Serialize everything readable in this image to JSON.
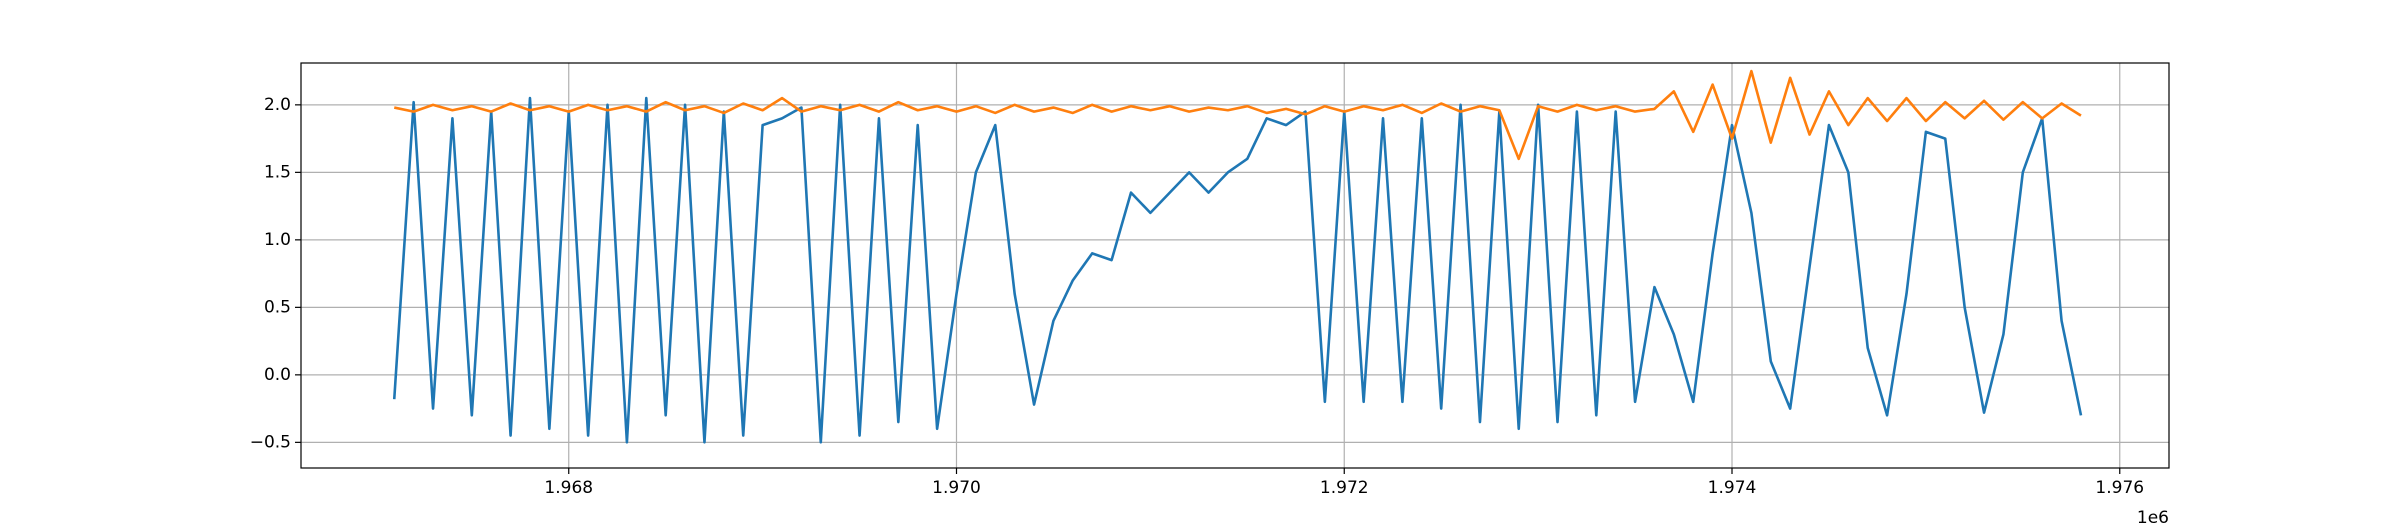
{
  "chart_data": {
    "type": "line",
    "x_offset_label": "1e6",
    "x": [
      1967100,
      1967200,
      1967300,
      1967400,
      1967500,
      1967600,
      1967700,
      1967800,
      1967900,
      1968000,
      1968100,
      1968200,
      1968300,
      1968400,
      1968500,
      1968600,
      1968700,
      1968800,
      1968900,
      1969000,
      1969100,
      1969200,
      1969300,
      1969400,
      1969500,
      1969600,
      1969700,
      1969800,
      1969900,
      1970000,
      1970100,
      1970200,
      1970300,
      1970400,
      1970500,
      1970600,
      1970700,
      1970800,
      1970900,
      1971000,
      1971100,
      1971200,
      1971300,
      1971400,
      1971500,
      1971600,
      1971700,
      1971800,
      1971900,
      1972000,
      1972100,
      1972200,
      1972300,
      1972400,
      1972500,
      1972600,
      1972700,
      1972800,
      1972900,
      1973000,
      1973100,
      1973200,
      1973300,
      1973400,
      1973500,
      1973600,
      1973700,
      1973800,
      1973900,
      1974000,
      1974100,
      1974200,
      1974300,
      1974400,
      1974500,
      1974600,
      1974700,
      1974800,
      1974900,
      1975000,
      1975100,
      1975200,
      1975300,
      1975400,
      1975500,
      1975600,
      1975700,
      1975800
    ],
    "series": [
      {
        "color": "#1f77b4",
        "values": [
          -0.18,
          2.02,
          -0.25,
          1.9,
          -0.3,
          1.95,
          -0.45,
          2.05,
          -0.4,
          1.95,
          -0.45,
          2.0,
          -0.5,
          2.05,
          -0.3,
          2.0,
          -0.5,
          1.95,
          -0.45,
          1.85,
          1.9,
          1.98,
          -0.5,
          2.0,
          -0.45,
          1.9,
          -0.35,
          1.85,
          -0.4,
          0.6,
          1.5,
          1.85,
          0.6,
          -0.22,
          0.4,
          0.7,
          0.9,
          0.85,
          1.35,
          1.2,
          1.35,
          1.5,
          1.35,
          1.5,
          1.6,
          1.9,
          1.85,
          1.95,
          -0.2,
          1.95,
          -0.2,
          1.9,
          -0.2,
          1.9,
          -0.25,
          2.0,
          -0.35,
          1.95,
          -0.4,
          2.0,
          -0.35,
          1.95,
          -0.3,
          1.95,
          -0.2,
          0.65,
          0.3,
          -0.2,
          0.9,
          1.85,
          1.2,
          0.1,
          -0.25,
          0.8,
          1.85,
          1.5,
          0.2,
          -0.3,
          0.6,
          1.8,
          1.75,
          0.5,
          -0.28,
          0.3,
          1.5,
          1.9,
          0.4,
          -0.3
        ]
      },
      {
        "color": "#ff7f0e",
        "values": [
          1.98,
          1.95,
          2.0,
          1.96,
          1.99,
          1.95,
          2.01,
          1.96,
          1.99,
          1.95,
          2.0,
          1.96,
          1.99,
          1.95,
          2.02,
          1.96,
          1.99,
          1.94,
          2.01,
          1.96,
          2.05,
          1.95,
          1.99,
          1.96,
          2.0,
          1.95,
          2.02,
          1.96,
          1.99,
          1.95,
          1.99,
          1.94,
          2.0,
          1.95,
          1.98,
          1.94,
          2.0,
          1.95,
          1.99,
          1.96,
          1.99,
          1.95,
          1.98,
          1.96,
          1.99,
          1.94,
          1.97,
          1.93,
          1.99,
          1.95,
          1.99,
          1.96,
          2.0,
          1.94,
          2.01,
          1.95,
          1.99,
          1.96,
          1.6,
          1.99,
          1.95,
          2.0,
          1.96,
          1.99,
          1.95,
          1.97,
          2.1,
          1.8,
          2.15,
          1.75,
          2.25,
          1.72,
          2.2,
          1.78,
          2.1,
          1.85,
          2.05,
          1.88,
          2.05,
          1.88,
          2.02,
          1.9,
          2.03,
          1.89,
          2.02,
          1.9,
          2.01,
          1.92
        ]
      }
    ],
    "xlim": [
      1966619,
      1976254
    ],
    "ylim": [
      -0.69,
      2.31
    ],
    "xticks": [
      {
        "value": 1968000,
        "label": "1.968"
      },
      {
        "value": 1970000,
        "label": "1.970"
      },
      {
        "value": 1972000,
        "label": "1.972"
      },
      {
        "value": 1974000,
        "label": "1.974"
      },
      {
        "value": 1976000,
        "label": "1.976"
      }
    ],
    "yticks": [
      {
        "value": -0.5,
        "label": "−0.5"
      },
      {
        "value": 0,
        "label": "0.0"
      },
      0.5,
      {
        "value": 1,
        "label": "1.0"
      },
      1.5,
      {
        "value": 2,
        "label": "2.0"
      }
    ],
    "grid": true
  }
}
